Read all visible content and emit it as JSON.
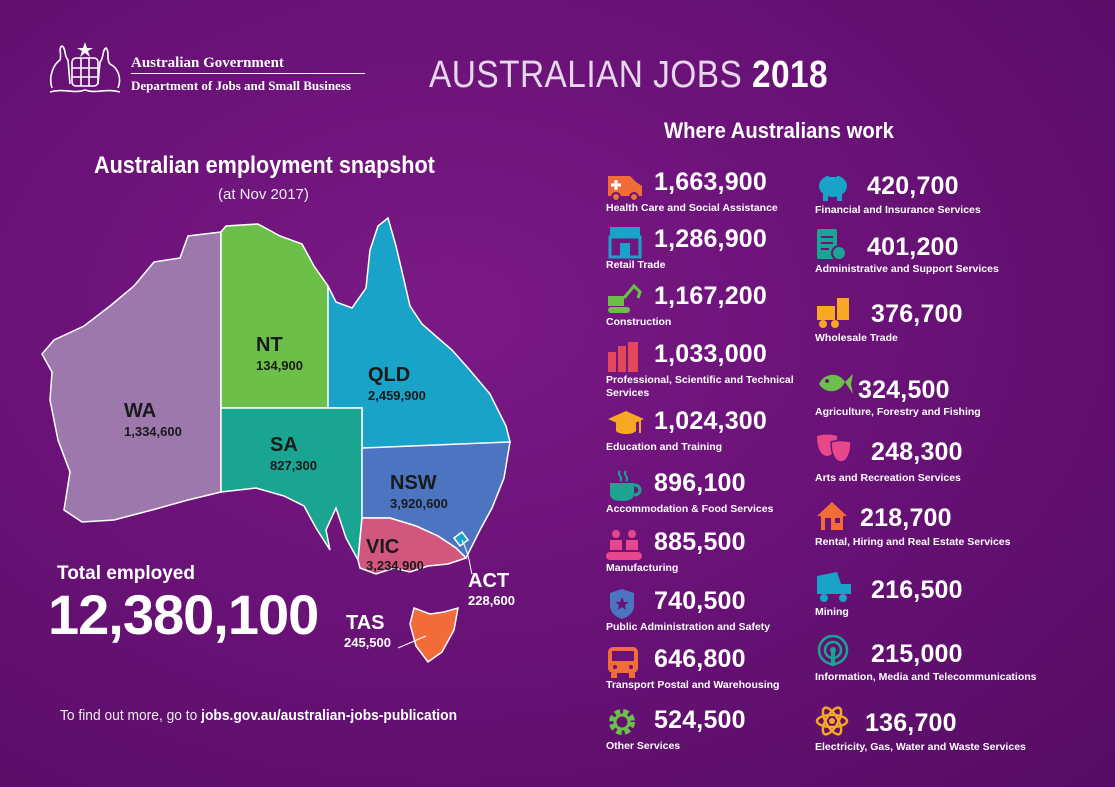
{
  "header": {
    "gov_name": "Australian Government",
    "dept_name": "Department of Jobs and Small Business",
    "title_light": "AUSTRALIAN JOBS",
    "title_bold": "2018"
  },
  "snapshot": {
    "title": "Australian employment snapshot",
    "subtitle": "(at Nov 2017)",
    "states": {
      "wa": {
        "name": "WA",
        "value": "1,334,600"
      },
      "nt": {
        "name": "NT",
        "value": "134,900"
      },
      "qld": {
        "name": "QLD",
        "value": "2,459,900"
      },
      "sa": {
        "name": "SA",
        "value": "827,300"
      },
      "nsw": {
        "name": "NSW",
        "value": "3,920,600"
      },
      "vic": {
        "name": "VIC",
        "value": "3,234,900"
      },
      "act": {
        "name": "ACT",
        "value": "228,600"
      },
      "tas": {
        "name": "TAS",
        "value": "245,500"
      }
    },
    "state_colors": {
      "wa": "#9c78ac",
      "nt": "#6cc04a",
      "qld": "#1aa3c8",
      "sa": "#1aa592",
      "nsw": "#4d74c0",
      "vic": "#d2577f",
      "tas": "#f26c3a"
    },
    "total_label": "Total employed",
    "total_value": "12,380,100"
  },
  "footer": {
    "prefix": "To find out more, go to",
    "link": "jobs.gov.au/australian-jobs-publication"
  },
  "industries": {
    "title": "Where Australians work",
    "items": [
      {
        "value": "1,663,900",
        "label": "Health Care and Social Assistance",
        "icon": "ambulance-icon",
        "color": "#f26c3a"
      },
      {
        "value": "1,286,900",
        "label": "Retail Trade",
        "icon": "shopfront-icon",
        "color": "#1aa3c8"
      },
      {
        "value": "1,167,200",
        "label": "Construction",
        "icon": "excavator-icon",
        "color": "#6cc04a"
      },
      {
        "value": "1,033,000",
        "label": "Professional, Scientific and Technical Services",
        "icon": "books-icon",
        "color": "#e2475a"
      },
      {
        "value": "1,024,300",
        "label": "Education and Training",
        "icon": "graduation-cap-icon",
        "color": "#f7a823"
      },
      {
        "value": "896,100",
        "label": "Accommodation & Food Services",
        "icon": "coffee-cup-icon",
        "color": "#1aa592"
      },
      {
        "value": "885,500",
        "label": "Manufacturing",
        "icon": "factory-workers-icon",
        "color": "#e8478b"
      },
      {
        "value": "740,500",
        "label": "Public Administration and Safety",
        "icon": "police-badge-icon",
        "color": "#4d74c0"
      },
      {
        "value": "646,800",
        "label": "Transport Postal and Warehousing",
        "icon": "bus-icon",
        "color": "#f26c3a"
      },
      {
        "value": "524,500",
        "label": "Other Services",
        "icon": "gear-icon",
        "color": "#6cc04a"
      },
      {
        "value": "420,700",
        "label": "Financial and Insurance Services",
        "icon": "piggy-bank-icon",
        "color": "#1aa3c8"
      },
      {
        "value": "401,200",
        "label": "Administrative and Support Services",
        "icon": "clipboard-icon",
        "color": "#1aa592"
      },
      {
        "value": "376,700",
        "label": "Wholesale Trade",
        "icon": "forklift-icon",
        "color": "#f7a823"
      },
      {
        "value": "324,500",
        "label": "Agriculture, Forestry and Fishing",
        "icon": "fish-icon",
        "color": "#6cc04a"
      },
      {
        "value": "248,300",
        "label": "Arts and Recreation Services",
        "icon": "theatre-masks-icon",
        "color": "#e8478b"
      },
      {
        "value": "218,700",
        "label": "Rental, Hiring and Real Estate Services",
        "icon": "house-icon",
        "color": "#f26c3a"
      },
      {
        "value": "216,500",
        "label": "Mining",
        "icon": "mining-truck-icon",
        "color": "#1aa3c8"
      },
      {
        "value": "215,000",
        "label": "Information, Media and Telecommunications",
        "icon": "broadcast-icon",
        "color": "#1aa592"
      },
      {
        "value": "136,700",
        "label": "Electricity, Gas, Water and Waste Services",
        "icon": "atom-icon",
        "color": "#f7a823"
      }
    ]
  }
}
